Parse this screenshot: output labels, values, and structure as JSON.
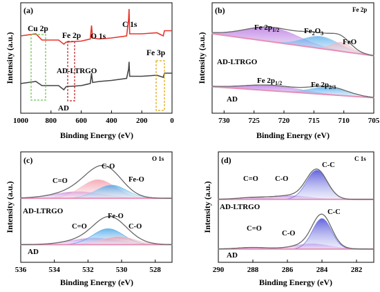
{
  "chart_data": [
    {
      "id": "a",
      "panel_label": "(a)",
      "type": "line",
      "xlabel": "Binding Energy (eV)",
      "ylabel": "Intensity (a.u.)",
      "xlim": [
        1000,
        0
      ],
      "x_ticks": [
        "1000",
        "900",
        "800",
        "700",
        "600",
        "500",
        "400",
        "300",
        "200",
        "100",
        "0"
      ],
      "x_tick_labels": [
        "1000",
        "800",
        "600",
        "400",
        "200",
        "0"
      ],
      "series": [
        {
          "name": "AD-LTRGO",
          "color": "#e8332a",
          "x": [
            1000,
            900,
            860,
            750,
            715,
            700,
            600,
            540,
            532,
            525,
            480,
            400,
            300,
            287,
            284,
            280,
            200,
            100,
            58,
            50,
            0
          ],
          "y": [
            0.72,
            0.74,
            0.68,
            0.68,
            0.64,
            0.66,
            0.67,
            0.69,
            0.82,
            0.7,
            0.69,
            0.7,
            0.72,
            0.88,
            0.98,
            0.74,
            0.74,
            0.75,
            0.72,
            0.77,
            0.77
          ]
        },
        {
          "name": "AD",
          "color": "#444444",
          "x": [
            1000,
            900,
            860,
            750,
            715,
            700,
            600,
            540,
            532,
            525,
            480,
            400,
            300,
            287,
            284,
            280,
            200,
            100,
            58,
            50,
            0
          ],
          "y": [
            0.26,
            0.28,
            0.24,
            0.24,
            0.2,
            0.23,
            0.24,
            0.26,
            0.36,
            0.27,
            0.28,
            0.29,
            0.31,
            0.4,
            0.47,
            0.33,
            0.33,
            0.34,
            0.32,
            0.36,
            0.36
          ]
        }
      ],
      "annotations": [
        "Cu 2p",
        "Fe 2p",
        "O 1s",
        "C 1s",
        "Fe 3p",
        "AD-LTRGO",
        "AD"
      ]
    },
    {
      "id": "b",
      "panel_label": "(b)",
      "title": "Fe 2p",
      "type": "line",
      "xlabel": "Binding Energy (eV)",
      "ylabel": "Intensity (a.u.)",
      "xlim": [
        732,
        705
      ],
      "x_tick_labels": [
        "730",
        "725",
        "720",
        "715",
        "710",
        "705"
      ],
      "series_labels": [
        "AD-LTRGO",
        "AD"
      ],
      "peaks_top": [
        {
          "label": "Fe 2p1/2",
          "center": 722,
          "height": 0.13,
          "width": 4.5,
          "color": "#c88ee6"
        },
        {
          "label": "Fe2O3",
          "center": 713.8,
          "height": 0.11,
          "width": 3.0,
          "color": "#9fd0ef"
        },
        {
          "label": "FeO",
          "center": 710.4,
          "height": 0.08,
          "width": 1.6,
          "color": "#f2b5b5"
        }
      ],
      "peaks_bottom": [
        {
          "label": "Fe 2p1/2",
          "center": 722,
          "height": 0.05,
          "width": 4.5,
          "color": "#c88ee6"
        },
        {
          "label": "Fe 2p2/3",
          "center": 712.5,
          "height": 0.07,
          "width": 3.0,
          "color": "#9fd0ef"
        }
      ],
      "annotations": [
        "Fe 2p1/2",
        "Fe2O3",
        "FeO",
        "Fe 2p1/2",
        "Fe 2p2/3",
        "AD-LTRGO",
        "AD"
      ]
    },
    {
      "id": "c",
      "panel_label": "(c)",
      "title": "O 1s",
      "type": "line",
      "xlabel": "Binding Energy (eV)",
      "ylabel": "Intensity (a.u.)",
      "xlim": [
        536,
        527
      ],
      "x_tick_labels": [
        "536",
        "534",
        "532",
        "530",
        "528"
      ],
      "series_labels": [
        "AD-LTRGO",
        "AD"
      ],
      "peaks_top": [
        {
          "label": "C=O",
          "center": 532.6,
          "height": 0.05,
          "width": 1.4,
          "color": "#e0a7e0"
        },
        {
          "label": "C-O",
          "center": 531.4,
          "height": 0.14,
          "width": 1.0,
          "color": "#f7b7c0"
        },
        {
          "label": "Fe-O",
          "center": 530.6,
          "height": 0.1,
          "width": 0.9,
          "color": "#87c4ea"
        }
      ],
      "peaks_bottom": [
        {
          "label": "C=O",
          "center": 531.6,
          "height": 0.05,
          "width": 1.4,
          "color": "#d8a8e8"
        },
        {
          "label": "Fe-O",
          "center": 530.8,
          "height": 0.12,
          "width": 0.9,
          "color": "#3ea1e6"
        },
        {
          "label": "C-O",
          "center": 530.2,
          "height": 0.06,
          "width": 1.0,
          "color": "#f3c0cb"
        }
      ],
      "annotations": [
        "C=O",
        "C-O",
        "Fe-O",
        "C=O",
        "Fe-O",
        "C-O",
        "AD-LTRGO",
        "AD"
      ]
    },
    {
      "id": "d",
      "panel_label": "(d)",
      "title": "C 1s",
      "type": "line",
      "xlabel": "Binding Energy (eV)",
      "ylabel": "Intensity (a.u.)",
      "xlim": [
        290,
        281
      ],
      "x_tick_labels": [
        "290",
        "288",
        "286",
        "284",
        "282"
      ],
      "series_labels": [
        "AD-LTRGO",
        "AD"
      ],
      "peaks_top": [
        {
          "label": "C=O",
          "center": 288.0,
          "height": 0.015,
          "width": 0.9,
          "color": "#d79ad7"
        },
        {
          "label": "C-O",
          "center": 285.8,
          "height": 0.03,
          "width": 1.0,
          "color": "#c6b0e8"
        },
        {
          "label": "C-C",
          "center": 284.3,
          "height": 0.24,
          "width": 0.6,
          "color": "#5b61e0"
        }
      ],
      "peaks_bottom": [
        {
          "label": "C=O",
          "center": 288.0,
          "height": 0.012,
          "width": 0.9,
          "color": "#d79ad7"
        },
        {
          "label": "C-O",
          "center": 284.6,
          "height": 0.04,
          "width": 1.0,
          "color": "#d6a8e6"
        },
        {
          "label": "C-C",
          "center": 284.0,
          "height": 0.23,
          "width": 0.55,
          "color": "#5b61e0"
        }
      ],
      "annotations": [
        "C=O",
        "C-O",
        "C-C",
        "C=O",
        "C-O",
        "C-C",
        "AD-LTRGO",
        "AD"
      ]
    }
  ]
}
